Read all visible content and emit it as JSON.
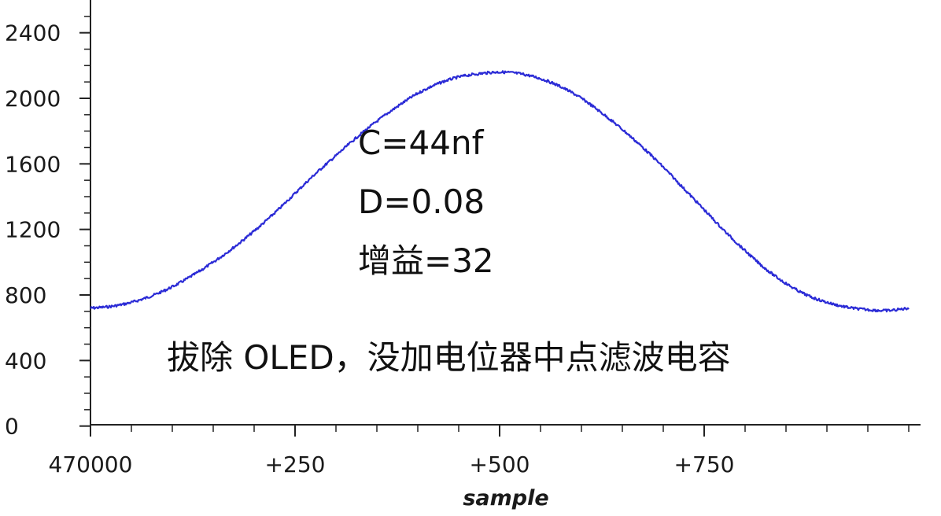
{
  "chart_data": {
    "type": "line",
    "title": "",
    "xlabel": "sample",
    "ylabel": "",
    "xlim": [
      470000,
      471000
    ],
    "ylim": [
      0,
      2500
    ],
    "x_ticks": [
      {
        "value": 470000,
        "label": "470000"
      },
      {
        "value": 470250,
        "label": "+250"
      },
      {
        "value": 470500,
        "label": "+500"
      },
      {
        "value": 470750,
        "label": "+750"
      }
    ],
    "x_minor_tick_step": 50,
    "y_ticks": [
      {
        "value": 0,
        "label": "0"
      },
      {
        "value": 400,
        "label": "400"
      },
      {
        "value": 800,
        "label": "800"
      },
      {
        "value": 1200,
        "label": "1200"
      },
      {
        "value": 1600,
        "label": "1600"
      },
      {
        "value": 2000,
        "label": "2000"
      },
      {
        "value": 2400,
        "label": "2400"
      }
    ],
    "y_minor_tick_step": 100,
    "grid": false,
    "legend": "none",
    "series_color": "#2b2bd6",
    "series": [
      {
        "x": [
          470000,
          470025,
          470050,
          470075,
          470100,
          470125,
          470150,
          470175,
          470200,
          470225,
          470250,
          470275,
          470300,
          470325,
          470350,
          470375,
          470400,
          470425,
          470450,
          470475,
          470500,
          470525,
          470550,
          470575,
          470600,
          470625,
          470650,
          470675,
          470700,
          470725,
          470750,
          470775,
          470800,
          470825,
          470850,
          470875,
          470900,
          470925,
          470950,
          470975,
          471000
        ],
        "values": [
          720,
          730,
          755,
          795,
          850,
          920,
          1000,
          1090,
          1190,
          1300,
          1420,
          1540,
          1650,
          1760,
          1860,
          1950,
          2030,
          2090,
          2130,
          2150,
          2160,
          2150,
          2120,
          2070,
          2000,
          1910,
          1810,
          1700,
          1580,
          1450,
          1320,
          1190,
          1070,
          960,
          870,
          800,
          755,
          725,
          710,
          705,
          720
        ]
      }
    ],
    "annotations": [
      "C=44nf",
      "D=0.08",
      "增益=32",
      "拔除 OLED，没加电位器中点滤波电容"
    ]
  }
}
